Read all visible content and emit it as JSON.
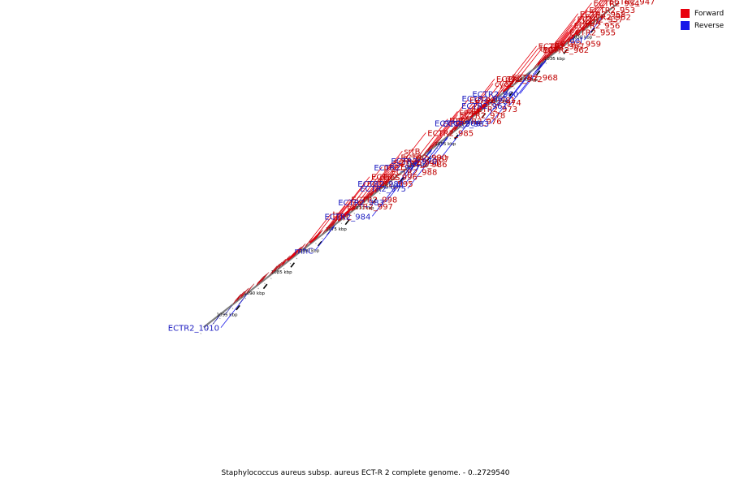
{
  "legend": {
    "forward_label": "Forward",
    "reverse_label": "Reverse"
  },
  "caption": "Staphylococcus aureus subsp. aureus ECT-R 2 complete genome. - 0..2729540",
  "colors": {
    "forward": "#e8000d",
    "reverse": "#1818e8",
    "axis": "#7f7f7f",
    "tick": "#000000",
    "label_forward": "#c00000",
    "label_reverse": "#1a1ac0"
  },
  "ticks": [
    {
      "kbp": 1030,
      "label": "1030 kbp"
    },
    {
      "kbp": 1035,
      "label": "1035 kbp"
    },
    {
      "kbp": 1040,
      "label": "1040 kbp"
    },
    {
      "kbp": 1045,
      "label": "1045 kbp"
    },
    {
      "kbp": 1050,
      "label": "1050 kbp"
    },
    {
      "kbp": 1055,
      "label": "1055 kbp"
    },
    {
      "kbp": 1060,
      "label": "1060 kbp"
    },
    {
      "kbp": 1065,
      "label": "1065 kbp"
    },
    {
      "kbp": 1070,
      "label": "1070 kbp"
    },
    {
      "kbp": 1075,
      "label": "1075 kbp"
    },
    {
      "kbp": 1080,
      "label": "1080 kbp"
    },
    {
      "kbp": 1085,
      "label": "1085 kbp"
    },
    {
      "kbp": 1090,
      "label": "1090 kbp"
    },
    {
      "kbp": 1095,
      "label": "1095 kbp"
    }
  ],
  "forward_genes": [
    {
      "name": "ECTR2_947",
      "start": 1033.5,
      "end": 1034.3
    },
    {
      "name": "pdhA",
      "start": 1034.4,
      "end": 1035.4
    },
    {
      "name": "ECTR2_949",
      "start": 1035.5,
      "end": 1036.5
    },
    {
      "name": "ECTR2_950",
      "start": 1036.6,
      "end": 1038.0
    },
    {
      "name": "lpdA",
      "start": 1038.1,
      "end": 1039.3
    },
    {
      "name": "ECTR2_952",
      "start": 1039.4,
      "end": 1039.8
    },
    {
      "name": "ECTR2_953",
      "start": 1039.9,
      "end": 1040.3
    },
    {
      "name": "ECTR2_954",
      "start": 1040.4,
      "end": 1040.8
    },
    {
      "name": "ECTR2_955",
      "start": 1040.9,
      "end": 1041.3
    },
    {
      "name": "ECTR2_956",
      "start": 1041.4,
      "end": 1041.9
    },
    {
      "name": "ECTR2_957",
      "start": 1042.0,
      "end": 1042.6
    },
    {
      "name": "ECTR2_958",
      "start": 1042.7,
      "end": 1043.6
    },
    {
      "name": "ECTR2_959",
      "start": 1043.7,
      "end": 1044.0
    },
    {
      "name": "ECTR2_962",
      "start": 1047.0,
      "end": 1047.6
    },
    {
      "name": "typA",
      "start": 1048.2,
      "end": 1050.0
    },
    {
      "name": "ECTR2_967",
      "start": 1050.5,
      "end": 1051.0
    },
    {
      "name": "ECTR2_968",
      "start": 1051.4,
      "end": 1052.0
    },
    {
      "name": "pyc",
      "start": 1052.5,
      "end": 1056.0
    },
    {
      "name": "cyoE",
      "start": 1057.0,
      "end": 1057.8
    },
    {
      "name": "ECTR2_972",
      "start": 1058.0,
      "end": 1058.8
    },
    {
      "name": "ECTR2_973",
      "start": 1058.9,
      "end": 1059.4
    },
    {
      "name": "ECTR2_974",
      "start": 1059.5,
      "end": 1059.9
    },
    {
      "name": "ECTR2_976",
      "start": 1061.8,
      "end": 1062.2
    },
    {
      "name": "ECTR2_978",
      "start": 1062.4,
      "end": 1062.8
    },
    {
      "name": "ECTR2_981",
      "start": 1063.0,
      "end": 1063.6
    },
    {
      "name": "coaD",
      "start": 1063.7,
      "end": 1064.1
    },
    {
      "name": "rpmF",
      "start": 1065.5,
      "end": 1066.0
    },
    {
      "name": "ECTR2_985",
      "start": 1070.6,
      "end": 1071.5
    },
    {
      "name": "ECTR2_986",
      "start": 1071.6,
      "end": 1072.4
    },
    {
      "name": "ECTR2_987",
      "start": 1072.5,
      "end": 1073.3
    },
    {
      "name": "ECTR2_988",
      "start": 1073.4,
      "end": 1074.2
    },
    {
      "name": "ECTR2_990",
      "start": 1074.3,
      "end": 1074.9
    },
    {
      "name": "srtB",
      "start": 1075.0,
      "end": 1075.6
    },
    {
      "name": "ECTR2_991",
      "start": 1075.7,
      "end": 1076.2
    },
    {
      "name": "pheS",
      "start": 1076.7,
      "end": 1077.7
    },
    {
      "name": "pheT",
      "start": 1077.8,
      "end": 1080.2
    },
    {
      "name": "ECTR2_995",
      "start": 1080.6,
      "end": 1081.0
    },
    {
      "name": "ECTR2_996",
      "start": 1081.1,
      "end": 1081.5
    },
    {
      "name": "ECTR2_997",
      "start": 1081.6,
      "end": 1082.2
    },
    {
      "name": "ECTR2_998",
      "start": 1082.3,
      "end": 1082.6
    },
    {
      "name": "uvrC",
      "start": 1083.6,
      "end": 1085.4
    },
    {
      "name": "trx",
      "start": 1085.6,
      "end": 1086.0
    },
    {
      "name": "",
      "start": 1086.8,
      "end": 1087.3
    },
    {
      "name": "",
      "start": 1087.5,
      "end": 1089.5
    },
    {
      "name": "",
      "start": 1089.6,
      "end": 1090.3
    },
    {
      "name": "",
      "start": 1090.4,
      "end": 1090.9
    },
    {
      "name": "",
      "start": 1091.1,
      "end": 1091.4
    },
    {
      "name": "",
      "start": 1091.5,
      "end": 1091.9
    },
    {
      "name": "",
      "start": 1092.0,
      "end": 1092.3
    },
    {
      "name": "",
      "start": 1093.5,
      "end": 1093.8
    },
    {
      "name": "",
      "start": 1093.9,
      "end": 1094.2
    },
    {
      "name": "",
      "start": 1094.3,
      "end": 1094.9
    },
    {
      "name": "",
      "start": 1096.2,
      "end": 1096.6
    },
    {
      "name": "",
      "start": 1097.2,
      "end": 1097.8
    },
    {
      "name": "",
      "start": 1098.0,
      "end": 1098.5
    },
    {
      "name": "",
      "start": 1098.6,
      "end": 1099.0
    }
  ],
  "reverse_genes": [
    {
      "name": "def",
      "start": 1030.2,
      "end": 1030.6
    },
    {
      "name": "ECTR2_960",
      "start": 1040.6,
      "end": 1041.3
    },
    {
      "name": "ECTR2_961",
      "start": 1041.4,
      "end": 1041.9
    },
    {
      "name": "ECTR2_963",
      "start": 1043.6,
      "end": 1043.8
    },
    {
      "name": "ECTR2_965",
      "start": 1044.0,
      "end": 1044.2
    },
    {
      "name": "ECTR2_966",
      "start": 1047.6,
      "end": 1048.0
    },
    {
      "name": "ECTR2_970",
      "start": 1054.3,
      "end": 1054.8
    },
    {
      "name": "ECTR2_975",
      "start": 1058.6,
      "end": 1059.3
    },
    {
      "name": "ECTR2_977",
      "start": 1060.1,
      "end": 1060.4
    },
    {
      "name": "ECTR2_980",
      "start": 1061.5,
      "end": 1062.3
    },
    {
      "name": "ECTR2_983",
      "start": 1063.6,
      "end": 1064.8
    },
    {
      "name": "ECTR2_984",
      "start": 1065.2,
      "end": 1065.7
    },
    {
      "name": "rnhC",
      "start": 1079.4,
      "end": 1080.0
    },
    {
      "name": "ECTR2_1010",
      "start": 1095.6,
      "end": 1095.9
    },
    {
      "name": "",
      "start": 1098.5,
      "end": 1098.7
    },
    {
      "name": "",
      "start": 1100.6,
      "end": 1100.9
    }
  ],
  "forward_labels": [
    {
      "name": "ECTR2_947",
      "gene_kbp": 1033.9
    },
    {
      "name": "pdhA",
      "gene_kbp": 1034.9
    },
    {
      "name": "ECTR2_949",
      "gene_kbp": 1036.0
    },
    {
      "name": "ECTR2_950",
      "gene_kbp": 1037.3
    },
    {
      "name": "lpdA",
      "gene_kbp": 1038.7
    },
    {
      "name": "ECTR2_952",
      "gene_kbp": 1039.6
    },
    {
      "name": "ECTR2_953",
      "gene_kbp": 1040.1
    },
    {
      "name": "ECTR2_954",
      "gene_kbp": 1040.6
    },
    {
      "name": "ECTR2_955",
      "gene_kbp": 1041.1
    },
    {
      "name": "ECTR2_956",
      "gene_kbp": 1041.6
    },
    {
      "name": "ECTR2_957",
      "gene_kbp": 1042.3
    },
    {
      "name": "ECTR2_958",
      "gene_kbp": 1043.1
    },
    {
      "name": "ECTR2_959",
      "gene_kbp": 1043.8
    },
    {
      "name": "ECTR2_962",
      "gene_kbp": 1047.3
    },
    {
      "name": "typA",
      "gene_kbp": 1049.1
    },
    {
      "name": "ECTR2_967",
      "gene_kbp": 1050.7
    },
    {
      "name": "ECTR2_968",
      "gene_kbp": 1051.7
    },
    {
      "name": "pyc",
      "gene_kbp": 1054.2
    },
    {
      "name": "cyoE",
      "gene_kbp": 1057.4
    },
    {
      "name": "ECTR2_972",
      "gene_kbp": 1058.4
    },
    {
      "name": "ECTR2_973",
      "gene_kbp": 1059.1
    },
    {
      "name": "ECTR2_974",
      "gene_kbp": 1059.7
    },
    {
      "name": "coaD",
      "gene_kbp": 1063.9
    },
    {
      "name": "ECTR2_981",
      "gene_kbp": 1063.3
    },
    {
      "name": "ECTR2_976",
      "gene_kbp": 1062.0
    },
    {
      "name": "ECTR2_978",
      "gene_kbp": 1062.6
    },
    {
      "name": "rpmF",
      "gene_kbp": 1065.7
    },
    {
      "name": "ECTR2_985",
      "gene_kbp": 1071.0
    },
    {
      "name": "ECTR2_986",
      "gene_kbp": 1072.0
    },
    {
      "name": "ECTR2_987",
      "gene_kbp": 1072.9
    },
    {
      "name": "ECTR2_991",
      "gene_kbp": 1075.9
    },
    {
      "name": "srtB",
      "gene_kbp": 1075.3
    },
    {
      "name": "ECTR2_988",
      "gene_kbp": 1073.8
    },
    {
      "name": "pheS",
      "gene_kbp": 1077.2
    },
    {
      "name": "ECTR2_990",
      "gene_kbp": 1074.6
    },
    {
      "name": "pheT",
      "gene_kbp": 1079.0
    },
    {
      "name": "ECTR2_997",
      "gene_kbp": 1081.9
    },
    {
      "name": "ECTR2_998",
      "gene_kbp": 1082.4
    },
    {
      "name": "ECTR2_995",
      "gene_kbp": 1080.8
    },
    {
      "name": "ECTR2_996",
      "gene_kbp": 1081.3
    },
    {
      "name": "uvrC",
      "gene_kbp": 1084.5
    },
    {
      "name": "trx",
      "gene_kbp": 1085.8
    }
  ],
  "reverse_labels": [
    {
      "name": "def",
      "gene_kbp": 1030.4
    },
    {
      "name": "ECTR2_960",
      "gene_kbp": 1040.9
    },
    {
      "name": "ECTR2_961",
      "gene_kbp": 1041.6
    },
    {
      "name": "ECTR2_963",
      "gene_kbp": 1043.7
    },
    {
      "name": "ECTR2_965",
      "gene_kbp": 1044.1
    },
    {
      "name": "ECTR2_966",
      "gene_kbp": 1047.8
    },
    {
      "name": "ECTR2_970",
      "gene_kbp": 1054.5
    },
    {
      "name": "ECTR2_975",
      "gene_kbp": 1058.9
    },
    {
      "name": "ECTR2_977",
      "gene_kbp": 1060.2
    },
    {
      "name": "ECTR2_980",
      "gene_kbp": 1061.9
    },
    {
      "name": "ECTR2_983",
      "gene_kbp": 1064.2
    },
    {
      "name": "ECTR2_984",
      "gene_kbp": 1065.4
    },
    {
      "name": "rnhC",
      "gene_kbp": 1079.7
    },
    {
      "name": "ECTR2_1010",
      "gene_kbp": 1095.7
    }
  ]
}
